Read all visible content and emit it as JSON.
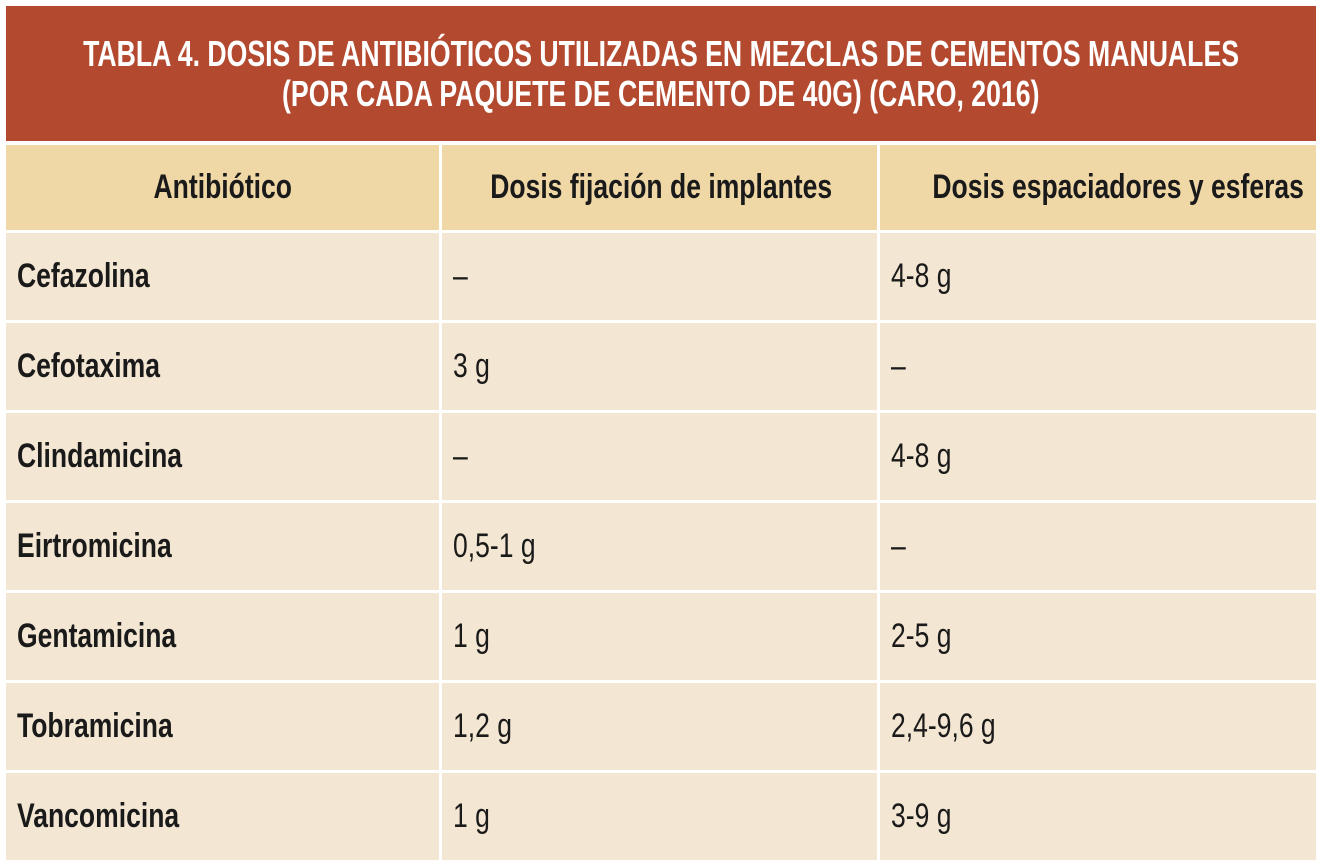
{
  "table": {
    "title_lines": [
      "TABLA 4. DOSIS DE ANTIBIÓTICOS UTILIZADAS EN MEZCLAS DE CEMENTOS MANUALES",
      "(POR CADA PAQUETE DE CEMENTO DE 40G) (CARO, 2016)"
    ],
    "headers": [
      "Antibiótico",
      "Dosis fijación de implantes",
      "Dosis espaciadores y esferas"
    ],
    "rows": [
      [
        "Cefazolina",
        "–",
        "4-8 g"
      ],
      [
        "Cefotaxima",
        "3 g",
        "–"
      ],
      [
        "Clindamicina",
        "–",
        "4-8 g"
      ],
      [
        "Eirtromicina",
        "0,5-1 g",
        "–"
      ],
      [
        "Gentamicina",
        "1 g",
        "2-5 g"
      ],
      [
        "Tobramicina",
        "1,2 g",
        "2,4-9,6 g"
      ],
      [
        "Vancomicina",
        "1 g",
        "3-9 g"
      ]
    ]
  },
  "colors": {
    "banner": "#b34a30",
    "header_row": "#efd8a6",
    "body_row": "#f3e6d2",
    "grid": "#ffffff",
    "text": "#1a1a1a"
  }
}
